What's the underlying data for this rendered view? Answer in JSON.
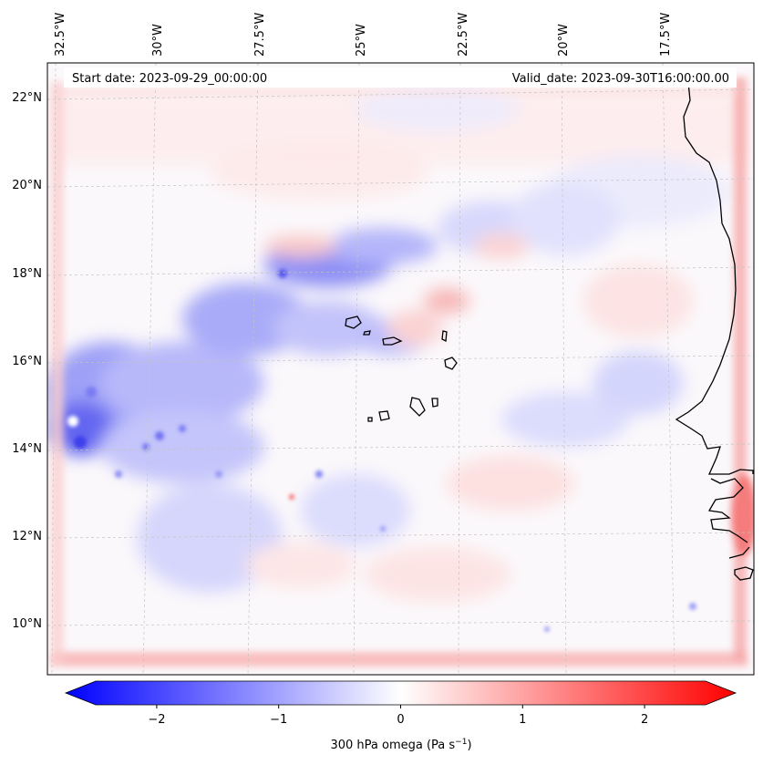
{
  "header": {
    "start_date": "Start date: 2023-09-29_00:00:00",
    "valid_date": "Valid_date: 2023-09-30T16:00:00.00"
  },
  "axes": {
    "lon_labels": [
      "32.5°W",
      "30°W",
      "27.5°W",
      "25°W",
      "22.5°W",
      "20°W",
      "17.5°W"
    ],
    "lat_labels": [
      "22°N",
      "20°N",
      "18°N",
      "16°N",
      "14°N",
      "12°N",
      "10°N"
    ]
  },
  "colorbar": {
    "ticks": [
      "−2",
      "−1",
      "0",
      "1",
      "2"
    ],
    "tick_values": [
      -2,
      -1,
      0,
      1,
      2
    ],
    "range": [
      -2.5,
      2.5
    ],
    "label": "300 hPa omega (Pa s",
    "label_sup": "−1",
    "label_end": ")",
    "colors": {
      "min": "#0000ff",
      "mid": "#ffffff",
      "max": "#ff0000"
    }
  },
  "map": {
    "field": "300 hPa omega",
    "coastline_color": "#000000",
    "grid_color": "#bbbbbb"
  }
}
